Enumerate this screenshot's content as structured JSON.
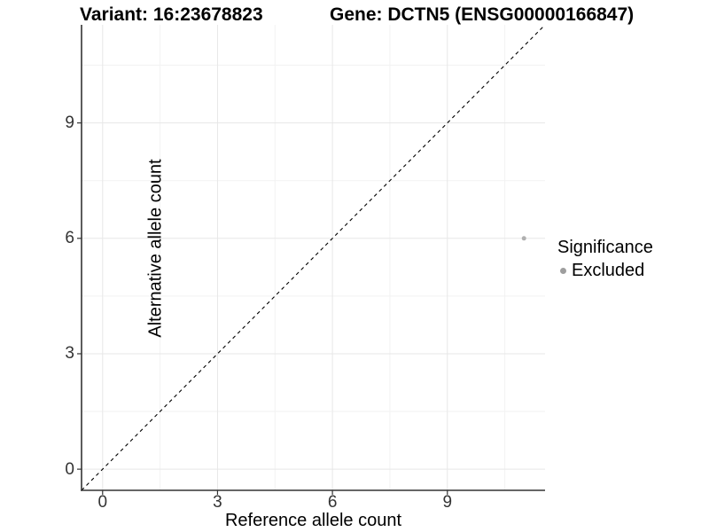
{
  "titles": {
    "variant": "Variant: 16:23678823",
    "gene": "Gene: DCTN5 (ENSG00000166847)"
  },
  "colors": {
    "background": "#ffffff",
    "axis_line": "#333333",
    "tick_mark": "#333333",
    "grid_major": "#e7e7e7",
    "grid_minor": "#f2f2f2",
    "reference_line": "#000000",
    "point": "#b0b0b0",
    "legend_point": "#9e9e9e",
    "title_text": "#000000",
    "tick_text": "#333333"
  },
  "chart_data": {
    "type": "scatter",
    "title": "Variant: 16:23678823   Gene: DCTN5 (ENSG00000166847)",
    "xlabel": "Reference allele count",
    "ylabel": "Alternative allele count",
    "xlim": [
      -0.55,
      11.55
    ],
    "ylim": [
      -0.55,
      11.55
    ],
    "x_ticks": [
      0,
      3,
      6,
      9
    ],
    "y_ticks": [
      0,
      3,
      6,
      9
    ],
    "x_minor_ticks": [
      1.5,
      4.5,
      7.5,
      10.5
    ],
    "y_minor_ticks": [
      1.5,
      4.5,
      7.5,
      10.5
    ],
    "grid": "on",
    "reference_line": {
      "type": "abline",
      "slope": 1,
      "intercept": 0,
      "style": "dashed"
    },
    "series": [
      {
        "name": "Excluded",
        "points": [
          {
            "x": 11,
            "y": 6
          }
        ]
      }
    ],
    "legend": {
      "title": "Significance",
      "position": "right",
      "entries": [
        {
          "label": "Excluded"
        }
      ]
    }
  }
}
